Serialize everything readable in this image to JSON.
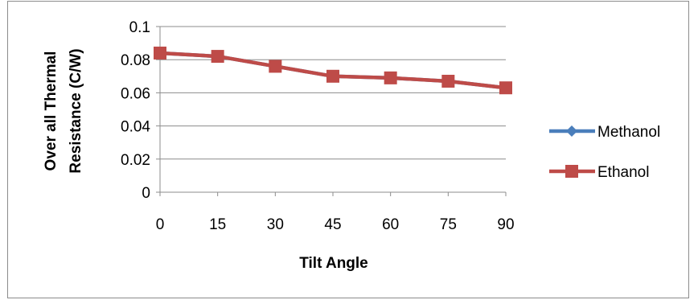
{
  "chart_data": {
    "type": "line",
    "title": "",
    "xlabel": "Tilt Angle",
    "ylabel_lines": [
      "Over all Thermal",
      "Resistance  (C/W)"
    ],
    "x": [
      0,
      15,
      30,
      45,
      60,
      75,
      90
    ],
    "x_tick_labels": [
      "0",
      "15",
      "30",
      "45",
      "60",
      "75",
      "90"
    ],
    "y_tick_labels": [
      "0",
      "0.02",
      "0.04",
      "0.06",
      "0.08",
      "0.1"
    ],
    "ylim": [
      0,
      0.1
    ],
    "grid": "horizontal",
    "legend_position": "right",
    "series": [
      {
        "name": "Methanol",
        "color": "#4a7ebb",
        "marker": "diamond",
        "values": [
          0.084,
          0.082,
          0.076,
          0.07,
          0.069,
          0.067,
          0.063
        ]
      },
      {
        "name": "Ethanol",
        "color": "#be4b48",
        "marker": "square",
        "values": [
          0.084,
          0.082,
          0.076,
          0.07,
          0.069,
          0.067,
          0.063
        ]
      }
    ]
  }
}
